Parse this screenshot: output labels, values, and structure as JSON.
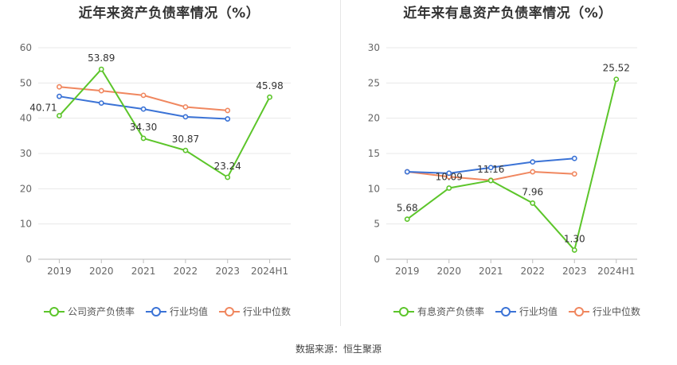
{
  "source_text": "数据来源：恒生聚源",
  "colors": {
    "company": "#5cc52a",
    "industry_avg": "#3b73d6",
    "industry_median": "#f0875f"
  },
  "chart_data": [
    {
      "type": "line",
      "title": "近年来资产负债率情况（%）",
      "categories": [
        "2019",
        "2020",
        "2021",
        "2022",
        "2023",
        "2024H1"
      ],
      "ylim": [
        0,
        60
      ],
      "yticks": [
        0,
        10,
        20,
        30,
        40,
        50,
        60
      ],
      "series": [
        {
          "name": "公司资产负债率",
          "key": "company",
          "values": [
            40.71,
            53.89,
            34.3,
            30.87,
            23.24,
            45.98
          ],
          "labels": [
            "40.71",
            "53.89",
            "34.30",
            "30.87",
            "23.24",
            "45.98"
          ]
        },
        {
          "name": "行业均值",
          "key": "industry_avg",
          "values": [
            46.2,
            44.3,
            42.6,
            40.4,
            39.8,
            null
          ]
        },
        {
          "name": "行业中位数",
          "key": "industry_median",
          "values": [
            48.9,
            47.8,
            46.5,
            43.2,
            42.2,
            null
          ]
        }
      ]
    },
    {
      "type": "line",
      "title": "近年来有息资产负债率情况（%）",
      "categories": [
        "2019",
        "2020",
        "2021",
        "2022",
        "2023",
        "2024H1"
      ],
      "ylim": [
        0,
        30
      ],
      "yticks": [
        0,
        5,
        10,
        15,
        20,
        25,
        30
      ],
      "series": [
        {
          "name": "有息资产负债率",
          "key": "company",
          "values": [
            5.68,
            10.09,
            11.16,
            7.96,
            1.3,
            25.52
          ],
          "labels": [
            "5.68",
            "10.09",
            "11.16",
            "7.96",
            "1.30",
            "25.52"
          ]
        },
        {
          "name": "行业均值",
          "key": "industry_avg",
          "values": [
            12.4,
            12.2,
            13.0,
            13.8,
            14.3,
            null
          ]
        },
        {
          "name": "行业中位数",
          "key": "industry_median",
          "values": [
            12.4,
            11.7,
            11.2,
            12.4,
            12.1,
            null
          ]
        }
      ]
    }
  ]
}
